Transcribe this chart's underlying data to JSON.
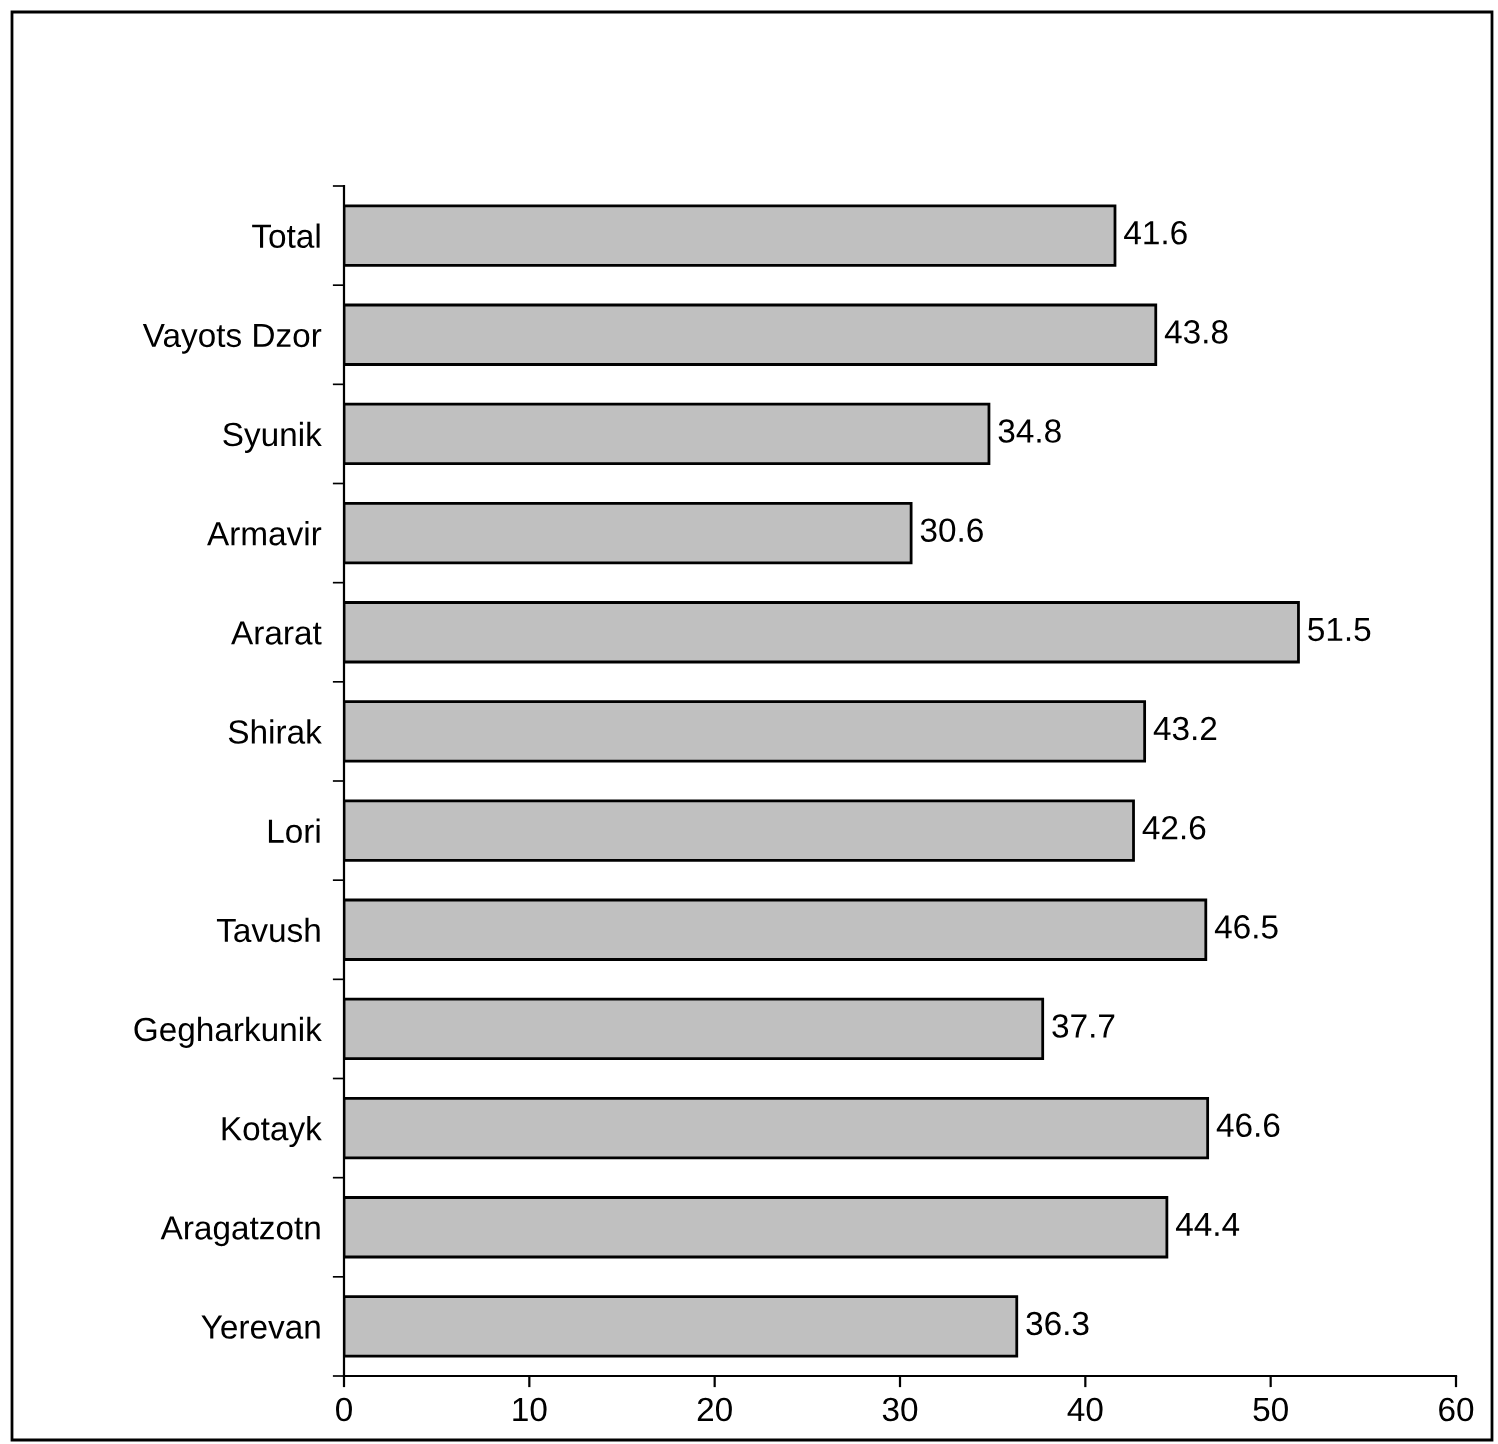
{
  "chart_data": {
    "type": "bar",
    "orientation": "horizontal",
    "categories": [
      "Total",
      "Vayots Dzor",
      "Syunik",
      "Armavir",
      "Ararat",
      "Shirak",
      "Lori",
      "Tavush",
      "Gegharkunik",
      "Kotayk",
      "Aragatzotn",
      "Yerevan"
    ],
    "values": [
      41.6,
      43.8,
      34.8,
      30.6,
      51.5,
      43.2,
      42.6,
      46.5,
      37.7,
      46.6,
      44.4,
      36.3
    ],
    "color": "#c0c0c0",
    "xlim": [
      0,
      60
    ],
    "xticks": [
      0,
      10,
      20,
      30,
      40,
      50,
      60
    ],
    "data_labels": true,
    "grid": false,
    "legend": false
  }
}
